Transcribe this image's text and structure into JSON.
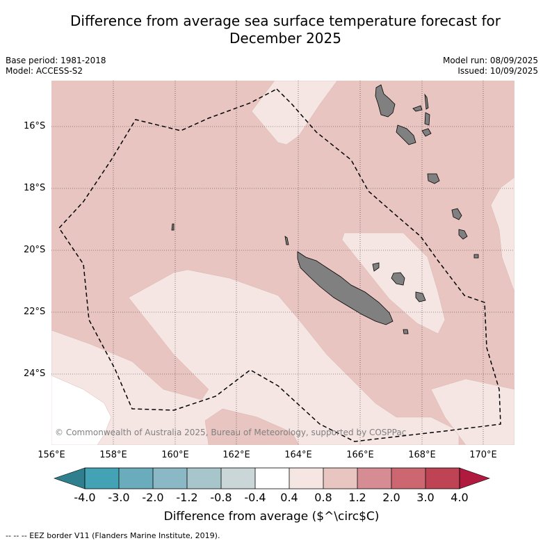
{
  "title_line1": "Difference from average sea surface temperature forecast for",
  "title_line2": "December 2025",
  "meta_left": {
    "base_period": "Base period: 1981-2018",
    "model": "Model: ACCESS-S2"
  },
  "meta_right": {
    "model_run": "Model run: 08/09/2025",
    "issued": "Issued: 10/09/2025"
  },
  "lat_labels": [
    "16°S",
    "18°S",
    "20°S",
    "22°S",
    "24°S"
  ],
  "lon_labels": [
    "156°E",
    "158°E",
    "160°E",
    "162°E",
    "164°E",
    "166°E",
    "168°E",
    "170°E"
  ],
  "copyright": "© Commonwealth of Australia 2025, Bureau of Meteorology, supported by COSPPac",
  "colorbar": {
    "ticks": [
      "-4.0",
      "-3.0",
      "-2.0",
      "-1.2",
      "-0.8",
      "-0.4",
      "0.4",
      "0.8",
      "1.2",
      "2.0",
      "3.0",
      "4.0"
    ],
    "colors": [
      "#2f7f8f",
      "#43a2b3",
      "#6aacbb",
      "#8ab8c4",
      "#a7c6cb",
      "#cbd6d8",
      "#ffffff",
      "#f5e6e4",
      "#e8c5c0",
      "#d68c93",
      "#cc6772",
      "#be4455",
      "#b01a3e"
    ],
    "title": "Difference from average ($^\\circ$C)"
  },
  "footnote": "--  --  -- EEZ border V11 (Flanders Marine Institute, 2019).",
  "map_colors": {
    "warm": "#e8c5c0",
    "light": "#f5e6e4",
    "land": "#808080"
  }
}
